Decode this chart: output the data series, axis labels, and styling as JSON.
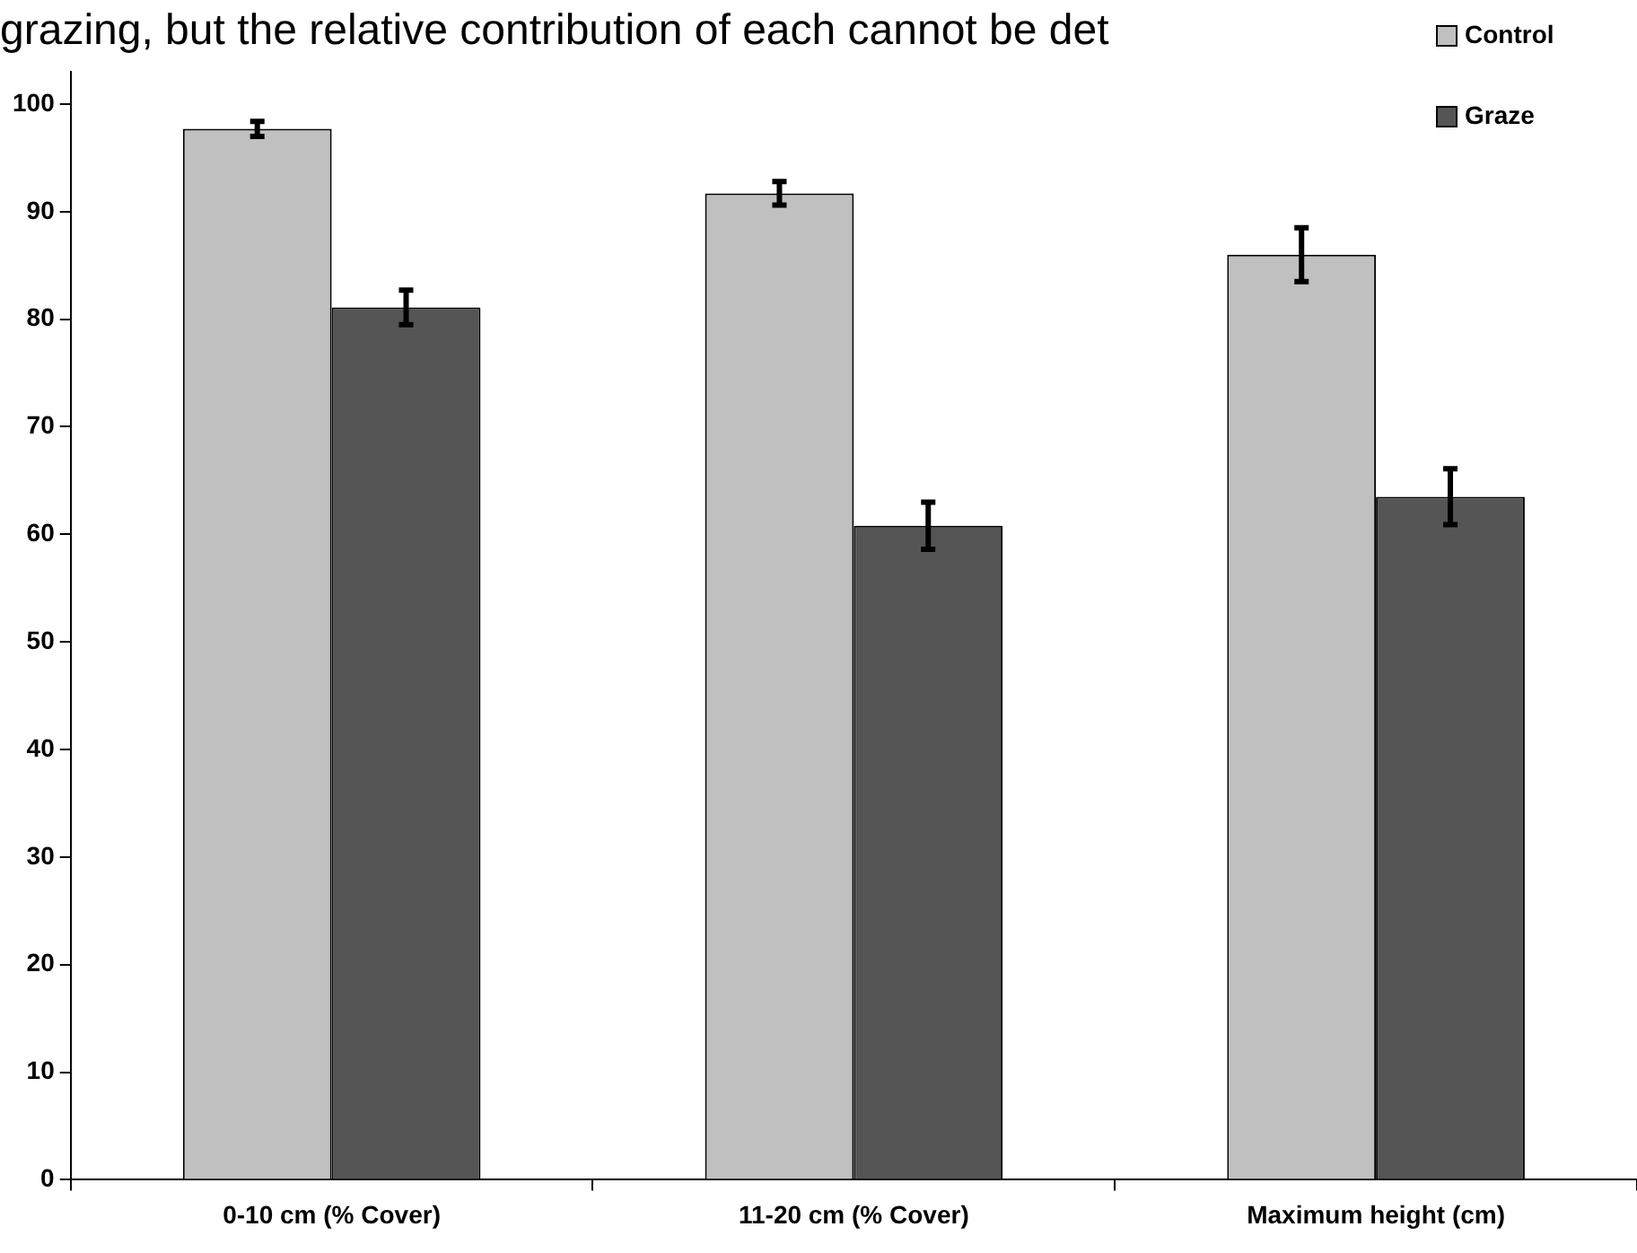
{
  "chart_data": {
    "type": "bar",
    "annotations": [
      "grazing, but the relative contribution of each cannot be det"
    ],
    "categories": [
      "0-10 cm (% Cover)",
      "11-20 cm (% Cover)",
      "Maximum height (cm)"
    ],
    "series": [
      {
        "name": "Control",
        "color": "#c0c0c0",
        "values": [
          97.7,
          91.7,
          86.0
        ],
        "errors": [
          0.7,
          1.1,
          2.5
        ]
      },
      {
        "name": "Graze",
        "color": "#555555",
        "values": [
          81.1,
          60.8,
          63.5
        ],
        "errors": [
          1.6,
          2.2,
          2.6
        ]
      }
    ],
    "ylim": [
      0,
      103
    ],
    "yticks": [
      0,
      10,
      20,
      30,
      40,
      50,
      60,
      70,
      80,
      90,
      100
    ],
    "grid": false,
    "legend": "top right"
  }
}
